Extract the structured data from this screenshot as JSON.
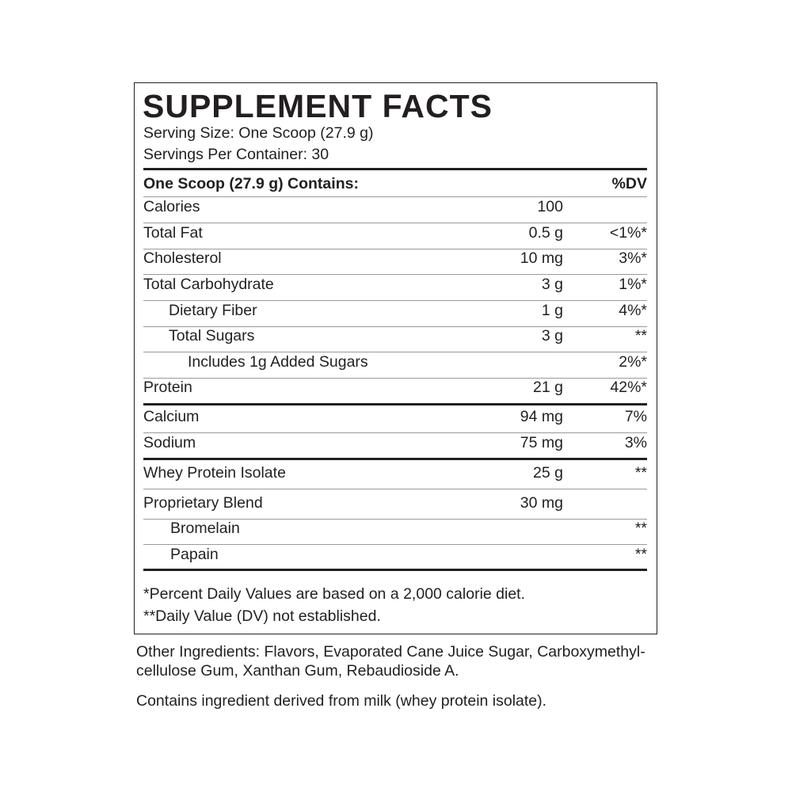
{
  "title": "SUPPLEMENT FACTS",
  "serving_size": "Serving Size: One Scoop (27.9 g)",
  "servings_per_container": "Servings Per Container: 30",
  "header": {
    "label": "One Scoop (27.9 g) Contains:",
    "dv": "%DV"
  },
  "rows": [
    {
      "name": "Calories",
      "amount": "100",
      "dv": ""
    },
    {
      "name": "Total Fat",
      "amount": "0.5 g",
      "dv": "<1%*"
    },
    {
      "name": "Cholesterol",
      "amount": "10 mg",
      "dv": "3%*"
    },
    {
      "name": "Total Carbohydrate",
      "amount": "3 g",
      "dv": "1%*"
    },
    {
      "name": "Dietary Fiber",
      "amount": "1 g",
      "dv": "4%*"
    },
    {
      "name": "Total Sugars",
      "amount": "3 g",
      "dv": "**"
    },
    {
      "name": "Includes 1g Added Sugars",
      "amount": "",
      "dv": "2%*"
    },
    {
      "name": "Protein",
      "amount": "21 g",
      "dv": "42%*"
    },
    {
      "name": "Calcium",
      "amount": "94 mg",
      "dv": "7%"
    },
    {
      "name": "Sodium",
      "amount": "75 mg",
      "dv": "3%"
    },
    {
      "name": "Whey Protein Isolate",
      "amount": "25 g",
      "dv": "**"
    },
    {
      "name": "Proprietary Blend",
      "amount": "30 mg",
      "dv": ""
    },
    {
      "name": "Bromelain",
      "amount": "",
      "dv": "**"
    },
    {
      "name": "Papain",
      "amount": "",
      "dv": "**"
    }
  ],
  "footnotes": [
    "*Percent Daily Values are based on a 2,000 calorie diet.",
    "**Daily Value (DV) not established."
  ],
  "other_ingredients": [
    "Other Ingredients: Flavors, Evaporated Cane Juice Sugar, Carboxymethyl-",
    "cellulose Gum, Xanthan Gum, Rebaudioside A."
  ],
  "allergen": "Contains ingredient derived from milk (whey protein isolate)."
}
